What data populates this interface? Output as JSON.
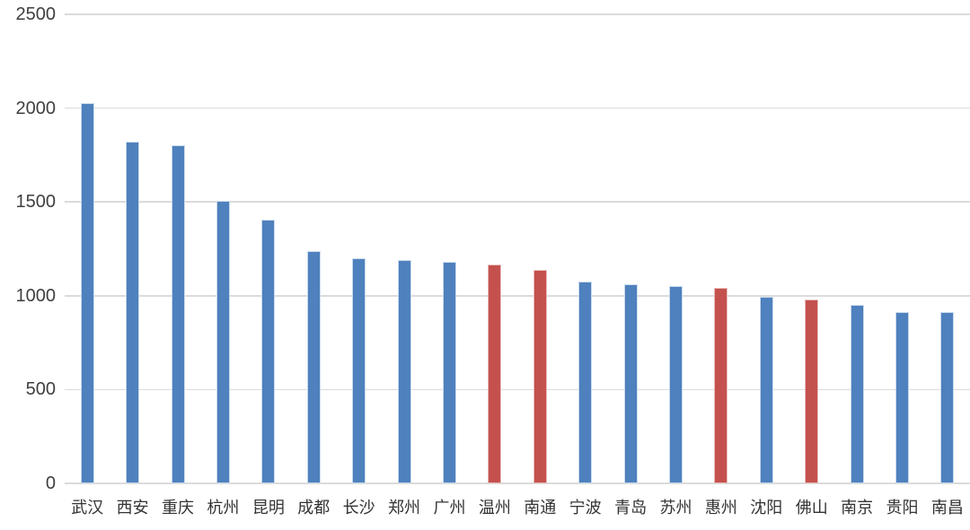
{
  "chart_data": {
    "type": "bar",
    "title": "",
    "xlabel": "",
    "ylabel": "",
    "categories": [
      "武汉",
      "西安",
      "重庆",
      "杭州",
      "昆明",
      "成都",
      "长沙",
      "郑州",
      "广州",
      "温州",
      "南通",
      "宁波",
      "青岛",
      "苏州",
      "惠州",
      "沈阳",
      "佛山",
      "南京",
      "贵阳",
      "南昌"
    ],
    "values": [
      2025,
      1820,
      1800,
      1505,
      1405,
      1240,
      1200,
      1190,
      1180,
      1165,
      1140,
      1075,
      1060,
      1050,
      1040,
      995,
      980,
      950,
      915,
      915
    ],
    "highlighted_categories": [
      "温州",
      "南通",
      "惠州",
      "佛山"
    ],
    "yticks": [
      0,
      500,
      1000,
      1500,
      2000,
      2500
    ],
    "ylim": [
      0,
      2500
    ],
    "grid": true,
    "legend": null,
    "colors": {
      "bar_default": "#4E81BD",
      "bar_default_border": "#C9D9EC",
      "bar_highlight": "#C4514D",
      "bar_highlight_border": "#E8BCBB",
      "gridline": "#DBDBDB",
      "axis_tick_label": "#3F3F3F",
      "category_label": "#333333",
      "background": "#FFFFFF"
    }
  }
}
